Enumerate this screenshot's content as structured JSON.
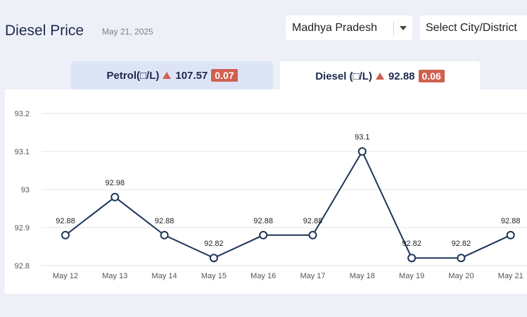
{
  "header": {
    "title": "Diesel Price",
    "date": "May 21, 2025"
  },
  "filters": {
    "state": "Madhya Pradesh",
    "city_placeholder": "Select City/District"
  },
  "tabs": [
    {
      "label": "Petrol(□/L)",
      "price": "107.57",
      "change": "0.07",
      "trend": "up",
      "active": false
    },
    {
      "label": "Diesel (□/L)",
      "price": "92.88",
      "change": "0.06",
      "trend": "up",
      "active": true
    }
  ],
  "colors": {
    "line": "#1d3557",
    "badge": "#d0604f",
    "active_tab": "#ffffff",
    "inactive_tab": "#dde4f6"
  },
  "chart_data": {
    "type": "line",
    "categories": [
      "May 12",
      "May 13",
      "May 14",
      "May 15",
      "May 16",
      "May 17",
      "May 18",
      "May 19",
      "May 20",
      "May 21"
    ],
    "values": [
      92.88,
      92.98,
      92.88,
      92.82,
      92.88,
      92.88,
      93.1,
      92.82,
      92.82,
      92.88
    ],
    "data_labels": [
      "92.88",
      "92.98",
      "92.88",
      "92.82",
      "92.88",
      "92.88",
      "93.1",
      "92.82",
      "92.82",
      "92.88"
    ],
    "y_ticks": [
      "93.2",
      "93.1",
      "93",
      "92.9",
      "92.8"
    ],
    "y_tick_values": [
      93.2,
      93.1,
      93.0,
      92.9,
      92.8
    ],
    "ylim": [
      92.8,
      93.2
    ],
    "grid": true,
    "title": "",
    "xlabel": "",
    "ylabel": ""
  }
}
